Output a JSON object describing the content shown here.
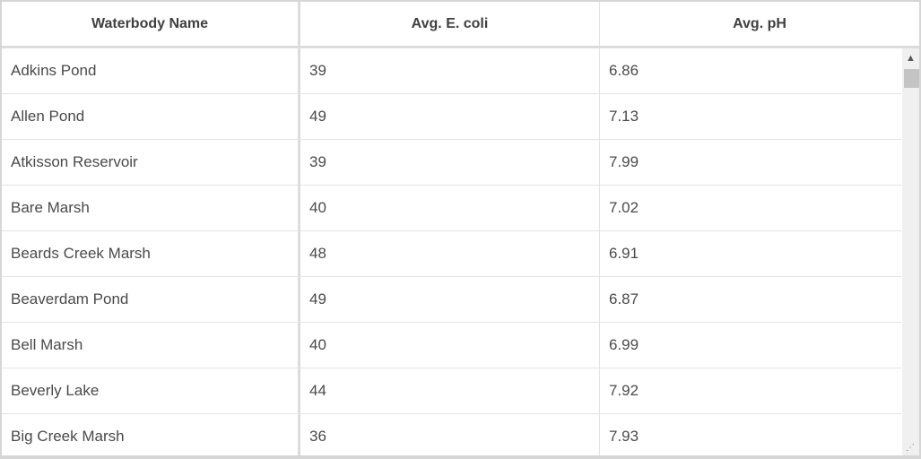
{
  "table": {
    "columns": [
      "Waterbody Name",
      "Avg. E. coli",
      "Avg. pH"
    ],
    "rows": [
      [
        "Adkins Pond",
        "39",
        "6.86"
      ],
      [
        "Allen Pond",
        "49",
        "7.13"
      ],
      [
        "Atkisson Reservoir",
        "39",
        "7.99"
      ],
      [
        "Bare Marsh",
        "40",
        "7.02"
      ],
      [
        "Beards Creek Marsh",
        "48",
        "6.91"
      ],
      [
        "Beaverdam Pond",
        "49",
        "6.87"
      ],
      [
        "Bell Marsh",
        "40",
        "6.99"
      ],
      [
        "Beverly Lake",
        "44",
        "7.92"
      ],
      [
        "Big Creek Marsh",
        "36",
        "7.93"
      ]
    ]
  },
  "scrollbar": {
    "position_percent": 0,
    "up_icon": "chevron-up-icon",
    "resize_icon": "resize-grip-icon"
  }
}
